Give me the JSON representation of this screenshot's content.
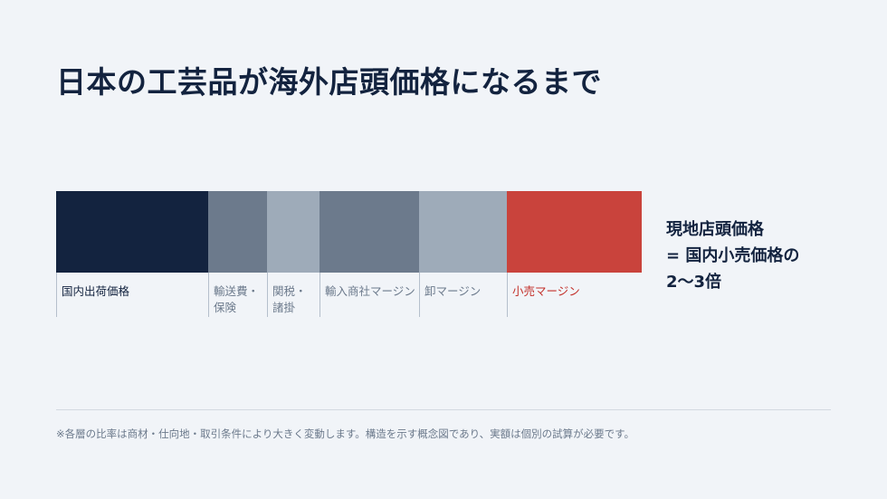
{
  "title": "日本の工芸品が海外店頭価格になるまで",
  "chart_data": {
    "type": "bar",
    "stacked": true,
    "orientation": "horizontal",
    "segments": [
      {
        "label": "国内出荷価格",
        "value": 26,
        "color": "#13233f",
        "label_color": "#13233f"
      },
      {
        "label": "輸送費・保険",
        "value": 10,
        "color": "#6c7a8c",
        "label_color": "#6c7a8c"
      },
      {
        "label": "関税・諸掛",
        "value": 9,
        "color": "#9eabb9",
        "label_color": "#6c7a8c"
      },
      {
        "label": "輸入商社マージン",
        "value": 17,
        "color": "#6c7a8c",
        "label_color": "#6c7a8c"
      },
      {
        "label": "卸マージン",
        "value": 15,
        "color": "#9eabb9",
        "label_color": "#6c7a8c"
      },
      {
        "label": "小売マージン",
        "value": 23,
        "color": "#c9433c",
        "label_color": "#c3312b"
      }
    ]
  },
  "result": {
    "line1": "現地店頭価格",
    "line2": "= 国内小売価格の",
    "line3": "2〜3倍"
  },
  "footnote": "※各層の比率は商材・仕向地・取引条件により大きく変動します。構造を示す概念図であり、実額は個別の試算が必要です。"
}
